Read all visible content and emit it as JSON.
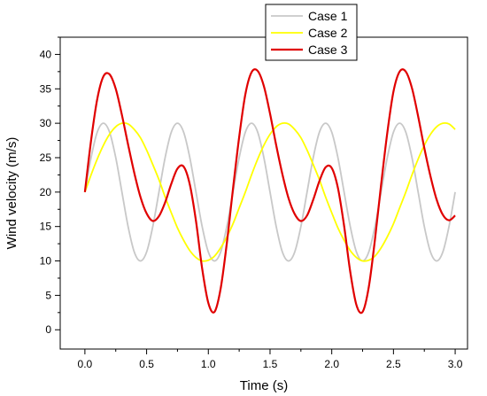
{
  "chart_data": {
    "type": "line",
    "xlabel": "Time (s)",
    "ylabel": "Wind velocity (m/s)",
    "xlim": [
      -0.2,
      3.1
    ],
    "ylim": [
      -2.8,
      42.5
    ],
    "xticks": [
      0.0,
      0.5,
      1.0,
      1.5,
      2.0,
      2.5,
      3.0
    ],
    "xtick_labels": [
      "0.0",
      "0.5",
      "1.0",
      "1.5",
      "2.0",
      "2.5",
      "3.0"
    ],
    "yticks": [
      0,
      5,
      10,
      15,
      20,
      25,
      30,
      35,
      40
    ],
    "ytick_labels": [
      "0",
      "5",
      "10",
      "15",
      "20",
      "25",
      "30",
      "35",
      "40"
    ],
    "grid": false,
    "legend_position": "top-right",
    "x": [
      0.0,
      0.05,
      0.1,
      0.15,
      0.2,
      0.25,
      0.3,
      0.35,
      0.4,
      0.45,
      0.5,
      0.55,
      0.6,
      0.65,
      0.7,
      0.75,
      0.8,
      0.85,
      0.9,
      0.95,
      1.0,
      1.05,
      1.1,
      1.15,
      1.2,
      1.25,
      1.3,
      1.35,
      1.4,
      1.45,
      1.5,
      1.55,
      1.6,
      1.65,
      1.7,
      1.75,
      1.8,
      1.85,
      1.9,
      1.95,
      2.0,
      2.05,
      2.1,
      2.15,
      2.2,
      2.25,
      2.3,
      2.35,
      2.4,
      2.45,
      2.5,
      2.55,
      2.6,
      2.65,
      2.7,
      2.75,
      2.8,
      2.85,
      2.9,
      2.95,
      3.0
    ],
    "series": [
      {
        "name": "Case 1",
        "color": "#c8c8c8",
        "values": [
          20.0,
          25.0,
          28.7,
          30.0,
          28.7,
          25.0,
          20.0,
          15.0,
          11.3,
          10.0,
          11.3,
          15.0,
          20.0,
          25.0,
          28.7,
          30.0,
          28.7,
          25.0,
          20.0,
          15.0,
          11.3,
          10.0,
          11.3,
          15.0,
          20.0,
          25.0,
          28.7,
          30.0,
          28.7,
          25.0,
          20.0,
          15.0,
          11.3,
          10.0,
          11.3,
          15.0,
          20.0,
          25.0,
          28.7,
          30.0,
          28.7,
          25.0,
          20.0,
          15.0,
          11.3,
          10.0,
          11.3,
          15.0,
          20.0,
          25.0,
          28.7,
          30.0,
          28.7,
          25.0,
          20.0,
          15.0,
          11.3,
          10.0,
          11.3,
          15.0,
          20.0
        ]
      },
      {
        "name": "Case 2",
        "color": "#ffff00",
        "values": [
          20.0,
          22.5,
          24.8,
          26.8,
          28.4,
          29.5,
          30.0,
          29.9,
          29.1,
          27.9,
          26.1,
          24.0,
          21.8,
          19.3,
          17.0,
          14.8,
          13.0,
          11.5,
          10.5,
          10.0,
          10.1,
          10.7,
          11.9,
          13.5,
          15.4,
          17.7,
          20.0,
          22.5,
          24.8,
          26.8,
          28.4,
          29.5,
          30.0,
          29.9,
          29.1,
          27.9,
          26.1,
          24.0,
          21.8,
          19.3,
          17.0,
          14.8,
          13.0,
          11.5,
          10.5,
          10.0,
          10.1,
          10.7,
          11.9,
          13.5,
          15.4,
          17.7,
          20.0,
          22.5,
          24.8,
          26.8,
          28.4,
          29.5,
          30.0,
          29.9,
          29.1
        ]
      },
      {
        "name": "Case 3",
        "color": "#e00000",
        "values": [
          20.0,
          27.5,
          33.5,
          36.8,
          37.1,
          35.0,
          31.2,
          26.9,
          22.8,
          19.3,
          16.9,
          15.8,
          16.5,
          18.5,
          21.2,
          23.4,
          23.7,
          21.1,
          15.8,
          8.9,
          3.9,
          2.6,
          6.0,
          12.6,
          20.5,
          28.0,
          34.2,
          37.4,
          37.6,
          35.4,
          31.4,
          26.8,
          22.6,
          19.1,
          16.8,
          15.8,
          16.6,
          18.9,
          21.6,
          23.6,
          23.5,
          20.6,
          15.1,
          8.4,
          3.6,
          2.6,
          6.2,
          13.1,
          21.1,
          28.6,
          34.6,
          37.5,
          37.5,
          35.1,
          31.0,
          26.4,
          22.3,
          18.9,
          16.7,
          15.9,
          16.6
        ]
      }
    ]
  }
}
